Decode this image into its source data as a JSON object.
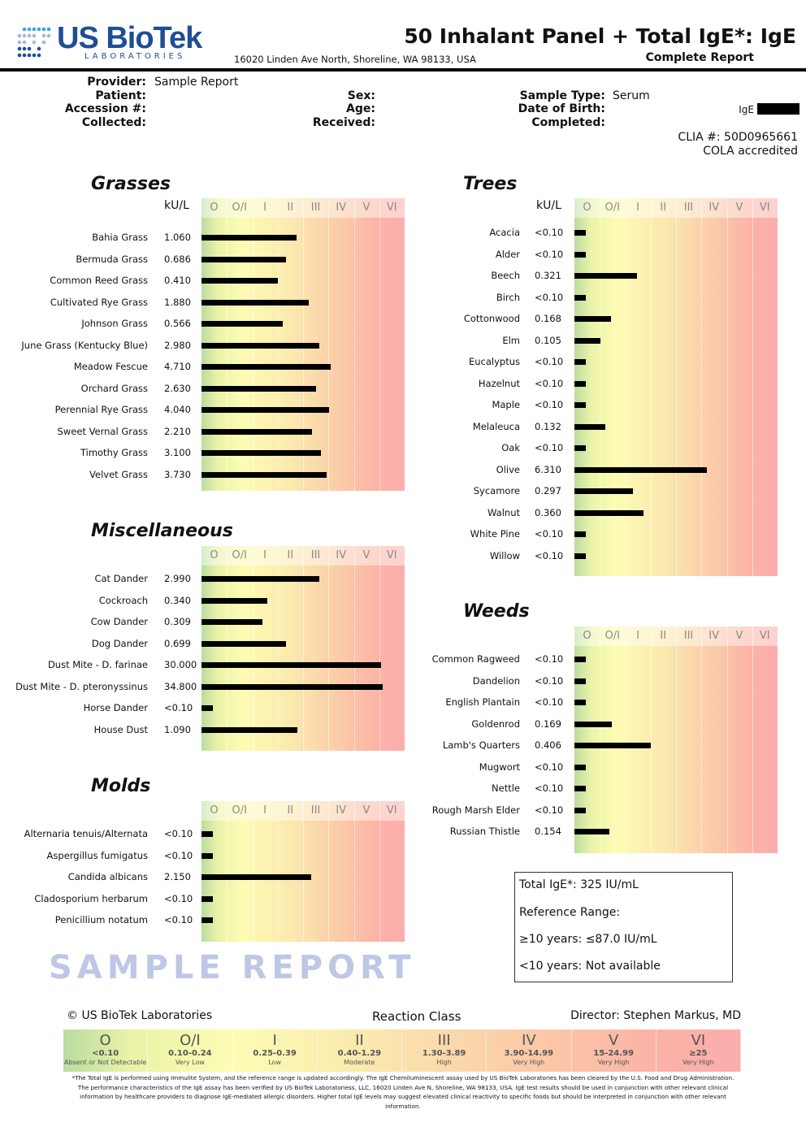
{
  "header": {
    "logo_main": "US BioTek",
    "logo_sub": "LABORATORIES",
    "address": "16020 Linden Ave North, Shoreline, WA 98133, USA",
    "title": "50 Inhalant Panel + Total IgE*: IgE",
    "subtitle": "Complete Report"
  },
  "info": {
    "provider_label": "Provider:",
    "provider": "Sample Report",
    "patient_label": "Patient:",
    "accession_label": "Accession #:",
    "collected_label": "Collected:",
    "sex_label": "Sex:",
    "age_label": "Age:",
    "received_label": "Received:",
    "sample_type_label": "Sample Type:",
    "sample_type": "Serum",
    "dob_label": "Date of Birth:",
    "completed_label": "Completed:",
    "ige_label": "IgE",
    "clia": "CLIA #: 50D0965661",
    "cola": "COLA accredited"
  },
  "unit": "kU/L",
  "class_labels": [
    "O",
    "O/I",
    "I",
    "II",
    "III",
    "IV",
    "V",
    "VI"
  ],
  "class_bounds": [
    0,
    0.1,
    0.25,
    0.4,
    1.3,
    3.9,
    15,
    25,
    100
  ],
  "panels": [
    {
      "id": "grasses",
      "title": "Grasses",
      "show_unit": true,
      "items": [
        [
          "Bahia Grass",
          "1.060"
        ],
        [
          "Bermuda Grass",
          "0.686"
        ],
        [
          "Common Reed Grass",
          "0.410"
        ],
        [
          "Cultivated Rye Grass",
          "1.880"
        ],
        [
          "Johnson Grass",
          "0.566"
        ],
        [
          "June Grass (Kentucky Blue)",
          "2.980"
        ],
        [
          "Meadow Fescue",
          "4.710"
        ],
        [
          "Orchard Grass",
          "2.630"
        ],
        [
          "Perennial Rye Grass",
          "4.040"
        ],
        [
          "Sweet Vernal Grass",
          "2.210"
        ],
        [
          "Timothy Grass",
          "3.100"
        ],
        [
          "Velvet Grass",
          "3.730"
        ]
      ]
    },
    {
      "id": "trees",
      "title": "Trees",
      "show_unit": true,
      "items": [
        [
          "Acacia",
          "<0.10"
        ],
        [
          "Alder",
          "<0.10"
        ],
        [
          "Beech",
          "0.321"
        ],
        [
          "Birch",
          "<0.10"
        ],
        [
          "Cottonwood",
          "0.168"
        ],
        [
          "Elm",
          "0.105"
        ],
        [
          "Eucalyptus",
          "<0.10"
        ],
        [
          "Hazelnut",
          "<0.10"
        ],
        [
          "Maple",
          "<0.10"
        ],
        [
          "Melaleuca",
          "0.132"
        ],
        [
          "Oak",
          "<0.10"
        ],
        [
          "Olive",
          "6.310"
        ],
        [
          "Sycamore",
          "0.297"
        ],
        [
          "Walnut",
          "0.360"
        ],
        [
          "White Pine",
          "<0.10"
        ],
        [
          "Willow",
          "<0.10"
        ]
      ]
    },
    {
      "id": "misc",
      "title": "Miscellaneous",
      "show_unit": false,
      "items": [
        [
          "Cat Dander",
          "2.990"
        ],
        [
          "Cockroach",
          "0.340"
        ],
        [
          "Cow Dander",
          "0.309"
        ],
        [
          "Dog Dander",
          "0.699"
        ],
        [
          "Dust Mite - D. farinae",
          "30.000"
        ],
        [
          "Dust Mite - D. pteronyssinus",
          "34.800"
        ],
        [
          "Horse Dander",
          "<0.10"
        ],
        [
          "House Dust",
          "1.090"
        ]
      ]
    },
    {
      "id": "molds",
      "title": "Molds",
      "show_unit": false,
      "items": [
        [
          "Alternaria tenuis/Alternata",
          "<0.10"
        ],
        [
          "Aspergillus fumigatus",
          "<0.10"
        ],
        [
          "Candida albicans",
          "2.150"
        ],
        [
          "Cladosporium herbarum",
          "<0.10"
        ],
        [
          "Penicillium notatum",
          "<0.10"
        ]
      ]
    },
    {
      "id": "weeds",
      "title": "Weeds",
      "show_unit": false,
      "items": [
        [
          "Common Ragweed",
          "<0.10"
        ],
        [
          "Dandelion",
          "<0.10"
        ],
        [
          "English Plantain",
          "<0.10"
        ],
        [
          "Goldenrod",
          "0.169"
        ],
        [
          "Lamb's Quarters",
          "0.406"
        ],
        [
          "Mugwort",
          "<0.10"
        ],
        [
          "Nettle",
          "<0.10"
        ],
        [
          "Rough Marsh Elder",
          "<0.10"
        ],
        [
          "Russian Thistle",
          "0.154"
        ]
      ]
    }
  ],
  "total_ige": {
    "result": "Total IgE*: 325 IU/mL",
    "ref": "Reference Range:",
    "adult": "≥10 years: ≤87.0 IU/mL",
    "child": "<10 years: Not available"
  },
  "footer": {
    "copyright": "© US BioTek Laboratories",
    "reaction_class": "Reaction Class",
    "director": "Director: Stephen Markus, MD",
    "legend": [
      [
        "O",
        "<0.10",
        "Absent or Not Detectable"
      ],
      [
        "O/I",
        "0.10-0.24",
        "Very Low"
      ],
      [
        "I",
        "0.25-0.39",
        "Low"
      ],
      [
        "II",
        "0.40-1.29",
        "Moderate"
      ],
      [
        "III",
        "1.30-3.89",
        "High"
      ],
      [
        "IV",
        "3.90-14.99",
        "Very High"
      ],
      [
        "V",
        "15-24.99",
        "Very High"
      ],
      [
        "VI",
        "≥25",
        "Very High"
      ]
    ],
    "note": "*The Total IgE is performed using Immulite System, and the reference range is updated accordingly. The IgE Chemiluminescent assay used by US BioTek Laboratories has been cleared by the U.S. Food and Drug Administration. The performance characteristics of the IgE assay has been verified by US BioTek Laboratoriess, LLC, 16020 Linden Ave N, Shoreline, WA 98133, USA. IgE test results should be used in conjunction with other relevant clinical information by healthcare providers to diagnose IgE-mediated allergic disorders. Higher total IgE levels may suggest elevated clinical reactivity to specific foods but should be interpreted in conjunction with other relevant information."
  },
  "watermark": "SAMPLE REPORT"
}
